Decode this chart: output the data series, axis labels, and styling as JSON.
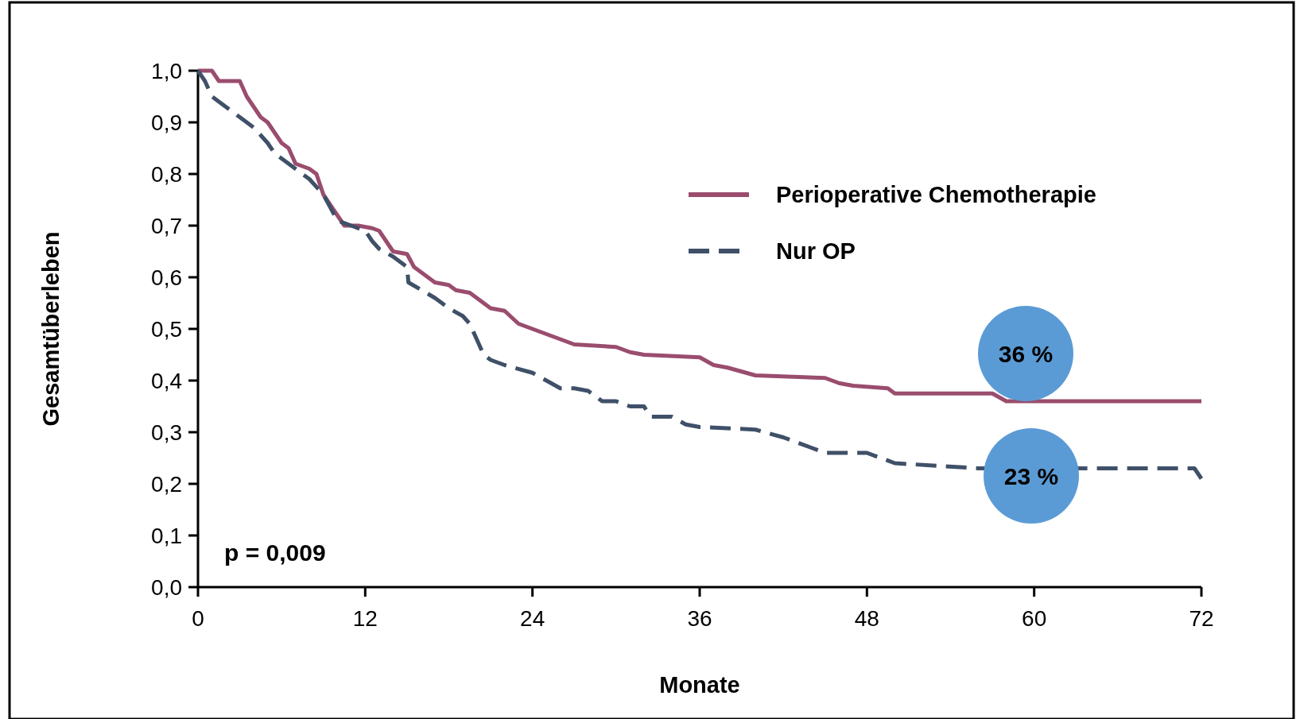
{
  "chart_data": {
    "type": "line",
    "xlabel": "Monate",
    "ylabel": "Gesamtüberleben",
    "xlim": [
      0,
      72
    ],
    "ylim": [
      0,
      1
    ],
    "xticks": [
      0,
      12,
      24,
      36,
      48,
      60,
      72
    ],
    "yticks": [
      {
        "value": 0,
        "label": "0,0"
      },
      {
        "value": 0.1,
        "label": "0,1"
      },
      {
        "value": 0.2,
        "label": "0,2"
      },
      {
        "value": 0.3,
        "label": "0,3"
      },
      {
        "value": 0.4,
        "label": "0,4"
      },
      {
        "value": 0.5,
        "label": "0,5"
      },
      {
        "value": 0.6,
        "label": "0,6"
      },
      {
        "value": 0.7,
        "label": "0,7"
      },
      {
        "value": 0.8,
        "label": "0,8"
      },
      {
        "value": 0.9,
        "label": "0,9"
      },
      {
        "value": 1,
        "label": "1,0"
      }
    ],
    "grid": false,
    "legend": "top right",
    "marker": "none",
    "series": [
      {
        "name": "Perioperative Chemotherapie",
        "color": "#9a4d6e",
        "line_style": "solid",
        "x": [
          0,
          1,
          1.5,
          3,
          3.5,
          4,
          4.5,
          5,
          5.5,
          6,
          6.5,
          7,
          8,
          8.5,
          9,
          10,
          10.5,
          11.5,
          12.5,
          13,
          13.5,
          14,
          15,
          15.5,
          16,
          17,
          18,
          18.5,
          19.5,
          20,
          21,
          22,
          23,
          24,
          25,
          26,
          27,
          30,
          31,
          32,
          36,
          37,
          38,
          40,
          45,
          46,
          47,
          49.5,
          50,
          57,
          58,
          72
        ],
        "values": [
          1,
          1,
          0.98,
          0.98,
          0.95,
          0.93,
          0.91,
          0.9,
          0.88,
          0.86,
          0.85,
          0.82,
          0.81,
          0.8,
          0.76,
          0.72,
          0.7,
          0.7,
          0.695,
          0.69,
          0.67,
          0.65,
          0.645,
          0.62,
          0.61,
          0.59,
          0.585,
          0.575,
          0.57,
          0.56,
          0.54,
          0.535,
          0.51,
          0.5,
          0.49,
          0.48,
          0.47,
          0.465,
          0.455,
          0.45,
          0.445,
          0.43,
          0.425,
          0.41,
          0.405,
          0.395,
          0.39,
          0.385,
          0.375,
          0.375,
          0.36,
          0.36
        ]
      },
      {
        "name": "Nur OP",
        "color": "#3f5068",
        "line_style": "dashed",
        "x": [
          0,
          0.5,
          1,
          1.5,
          2,
          3,
          3.5,
          4,
          5,
          5.5,
          6,
          7,
          8,
          9,
          10,
          11,
          12,
          12.5,
          13,
          14,
          14.5,
          15,
          15.1,
          17,
          18,
          19,
          19.5,
          20,
          20.5,
          21,
          22,
          24,
          25,
          26,
          27,
          28,
          29,
          30,
          31,
          32,
          32.5,
          34,
          35,
          36,
          40,
          42,
          43,
          44,
          45,
          48,
          49,
          50,
          53,
          56,
          71.5,
          72
        ],
        "values": [
          1,
          0.98,
          0.95,
          0.94,
          0.93,
          0.91,
          0.9,
          0.89,
          0.86,
          0.84,
          0.83,
          0.81,
          0.79,
          0.76,
          0.71,
          0.7,
          0.69,
          0.67,
          0.655,
          0.64,
          0.63,
          0.62,
          0.59,
          0.56,
          0.54,
          0.525,
          0.51,
          0.48,
          0.45,
          0.44,
          0.43,
          0.415,
          0.4,
          0.385,
          0.385,
          0.38,
          0.36,
          0.36,
          0.35,
          0.35,
          0.33,
          0.33,
          0.315,
          0.31,
          0.305,
          0.29,
          0.28,
          0.27,
          0.26,
          0.26,
          0.25,
          0.24,
          0.235,
          0.23,
          0.23,
          0.21
        ]
      }
    ],
    "annotations": [
      "36 %",
      "23 %",
      "p = 0,009"
    ]
  }
}
